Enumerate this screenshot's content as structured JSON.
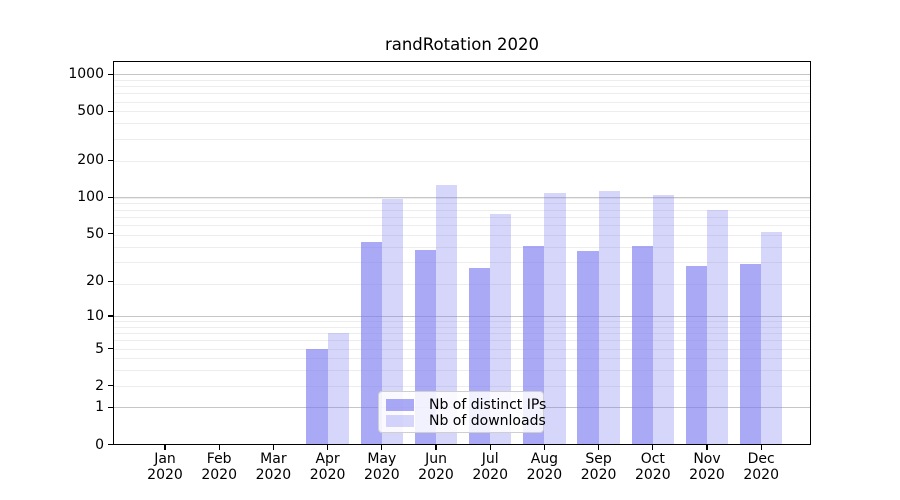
{
  "figure": {
    "background": "#ffffff",
    "axis_color": "#000000",
    "text_color": "#000000"
  },
  "chart_data": {
    "type": "bar",
    "title": "randRotation 2020",
    "categories": [
      "Jan",
      "Feb",
      "Mar",
      "Apr",
      "May",
      "Jun",
      "Jul",
      "Aug",
      "Sep",
      "Oct",
      "Nov",
      "Dec"
    ],
    "x_year": "2020",
    "series": [
      {
        "name": "Nb of distinct IPs",
        "color": "rgba(120,120,240,0.64)",
        "values": [
          0,
          0,
          0,
          5,
          43,
          37,
          26,
          40,
          36,
          40,
          27,
          28
        ]
      },
      {
        "name": "Nb of downloads",
        "color": "rgba(120,120,240,0.30)",
        "values": [
          0,
          0,
          0,
          7,
          97,
          127,
          73,
          108,
          112,
          104,
          78,
          52
        ]
      }
    ],
    "yticks": [
      0,
      1,
      2,
      5,
      10,
      20,
      50,
      100,
      200,
      500,
      1000
    ],
    "ylim": [
      0,
      1280
    ],
    "yscale": "log10(1+v)",
    "grid": {
      "major_values": [
        1,
        10,
        100,
        1000
      ],
      "major_color": "#c6c6c6",
      "minor_color": "#ededed"
    },
    "legend_position": "inside-bottom-center"
  }
}
